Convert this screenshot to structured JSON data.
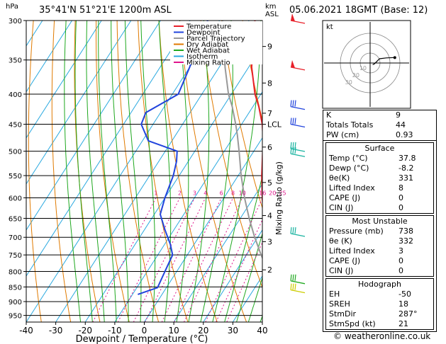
{
  "header": {
    "pressure_unit": "hPa",
    "location": "35°41'N  51°21'E  1200m  ASL",
    "height_unit_line1": "km",
    "height_unit_line2": "ASL",
    "datetime": "05.06.2021  18GMT  (Base: 12)"
  },
  "chart_data": {
    "type": "line",
    "title": "",
    "xlabel": "Dewpoint / Temperature (°C)",
    "ylabel": "hPa",
    "y2label": "Mixing Ratio (g/kg)",
    "xlim": [
      -40,
      40
    ],
    "ylim": [
      975,
      300
    ],
    "y_scale": "log",
    "x_ticks": [
      -40,
      -30,
      -20,
      -10,
      0,
      10,
      20,
      30,
      40
    ],
    "pressure_ticks": [
      300,
      350,
      400,
      450,
      500,
      550,
      600,
      650,
      700,
      750,
      800,
      850,
      900,
      950
    ],
    "height_ticks": [
      {
        "label": "9",
        "p": 332
      },
      {
        "label": "8",
        "p": 383
      },
      {
        "label": "7",
        "p": 431
      },
      {
        "label": "6",
        "p": 492
      },
      {
        "label": "5",
        "p": 565
      },
      {
        "label": "4",
        "p": 643
      },
      {
        "label": "3",
        "p": 712
      },
      {
        "label": "2",
        "p": 795
      },
      {
        "label": "LCL",
        "p": 450
      }
    ],
    "mixing_ratio_labels": [
      "1",
      "2",
      "3",
      "4",
      "6",
      "8",
      "10",
      "16",
      "20",
      "25"
    ],
    "mixing_ratio_values": [
      1,
      2,
      3,
      4,
      6,
      8,
      10,
      16,
      20,
      25
    ],
    "legend": {
      "position": "top-left",
      "entries": [
        {
          "name": "Temperature",
          "color": "#e8202a"
        },
        {
          "name": "Dewpoint",
          "color": "#2244dd"
        },
        {
          "name": "Parcel Trajectory",
          "color": "#999999"
        },
        {
          "name": "Dry Adiabat",
          "color": "#e07a00"
        },
        {
          "name": "Wet Adiabat",
          "color": "#1fa81f"
        },
        {
          "name": "Isotherm",
          "color": "#2aa9e0"
        },
        {
          "name": "Mixing Ratio",
          "color": "#e0148c"
        }
      ]
    },
    "series": [
      {
        "name": "Temperature",
        "points": [
          [
            37.8,
            852
          ],
          [
            34,
            800
          ],
          [
            29,
            750
          ],
          [
            24,
            700
          ],
          [
            18,
            650
          ],
          [
            13,
            600
          ],
          [
            8,
            550
          ],
          [
            3,
            500
          ],
          [
            2,
            480
          ],
          [
            -1,
            465
          ],
          [
            -3,
            450
          ],
          [
            -8,
            420
          ],
          [
            -12,
            400
          ],
          [
            -19,
            360
          ],
          [
            -25,
            320
          ],
          [
            -28,
            300
          ]
        ]
      },
      {
        "name": "Dewpoint",
        "points": [
          [
            -8.2,
            875
          ],
          [
            -3,
            852
          ],
          [
            -4,
            800
          ],
          [
            -5,
            750
          ],
          [
            -8,
            720
          ],
          [
            -13,
            680
          ],
          [
            -18,
            640
          ],
          [
            -20,
            600
          ],
          [
            -22,
            550
          ],
          [
            -24,
            520
          ],
          [
            -26,
            500
          ],
          [
            -38,
            480
          ],
          [
            -44,
            450
          ],
          [
            -45,
            430
          ],
          [
            -38,
            400
          ],
          [
            -40,
            360
          ],
          [
            -43,
            320
          ],
          [
            -44,
            300
          ]
        ]
      },
      {
        "name": "Parcel Trajectory",
        "points": [
          [
            37.8,
            852
          ],
          [
            31,
            800
          ],
          [
            25,
            750
          ],
          [
            19,
            700
          ],
          [
            13,
            650
          ],
          [
            7,
            600
          ],
          [
            1,
            550
          ],
          [
            -5,
            500
          ],
          [
            -9,
            470
          ],
          [
            -12,
            450
          ],
          [
            -17,
            420
          ],
          [
            -21,
            400
          ],
          [
            -28,
            360
          ],
          [
            -35,
            320
          ],
          [
            -39,
            300
          ]
        ]
      }
    ],
    "wind_barbs": [
      {
        "p": 300,
        "color": "#e8202a",
        "style": "pennant"
      },
      {
        "p": 360,
        "color": "#e8202a",
        "style": "pennant"
      },
      {
        "p": 420,
        "color": "#2244dd",
        "style": "barb"
      },
      {
        "p": 450,
        "color": "#2244dd",
        "style": "barb"
      },
      {
        "p": 495,
        "color": "#19b3a0",
        "style": "barb"
      },
      {
        "p": 505,
        "color": "#19b3a0",
        "style": "barb"
      },
      {
        "p": 690,
        "color": "#19b3a0",
        "style": "barb"
      },
      {
        "p": 830,
        "color": "#22aa22",
        "style": "barb"
      },
      {
        "p": 860,
        "color": "#cccc00",
        "style": "barb"
      }
    ]
  },
  "hodograph": {
    "unit_label": "kt",
    "ring_labels": [
      "10",
      "20",
      "30"
    ],
    "path": [
      [
        1.5,
        -1.0
      ],
      [
        2.5,
        -0.5
      ],
      [
        4.5,
        1.5
      ],
      [
        5.5,
        2.5
      ],
      [
        9.5,
        3.0
      ],
      [
        14.5,
        3.2
      ]
    ]
  },
  "indices": {
    "top": [
      {
        "k": "K",
        "v": "9"
      },
      {
        "k": "Totals Totals",
        "v": "44"
      },
      {
        "k": "PW (cm)",
        "v": "0.93"
      }
    ],
    "surface": {
      "title": "Surface",
      "rows": [
        {
          "k": "Temp (°C)",
          "v": "37.8"
        },
        {
          "k": "Dewp (°C)",
          "v": "-8.2"
        },
        {
          "k": "θe(K)",
          "v": "331"
        },
        {
          "k": "Lifted Index",
          "v": "8"
        },
        {
          "k": "CAPE (J)",
          "v": "0"
        },
        {
          "k": "CIN (J)",
          "v": "0"
        }
      ]
    },
    "unstable": {
      "title": "Most Unstable",
      "rows": [
        {
          "k": "Pressure (mb)",
          "v": "738"
        },
        {
          "k": "θe (K)",
          "v": "332"
        },
        {
          "k": "Lifted Index",
          "v": "3"
        },
        {
          "k": "CAPE (J)",
          "v": "0"
        },
        {
          "k": "CIN (J)",
          "v": "0"
        }
      ]
    },
    "hodo": {
      "title": "Hodograph",
      "rows": [
        {
          "k": "EH",
          "v": "-50"
        },
        {
          "k": "SREH",
          "v": "18"
        },
        {
          "k": "StmDir",
          "v": "287°"
        },
        {
          "k": "StmSpd (kt)",
          "v": "21"
        }
      ]
    }
  },
  "footer": {
    "text": "© weatheronline.co.uk"
  }
}
